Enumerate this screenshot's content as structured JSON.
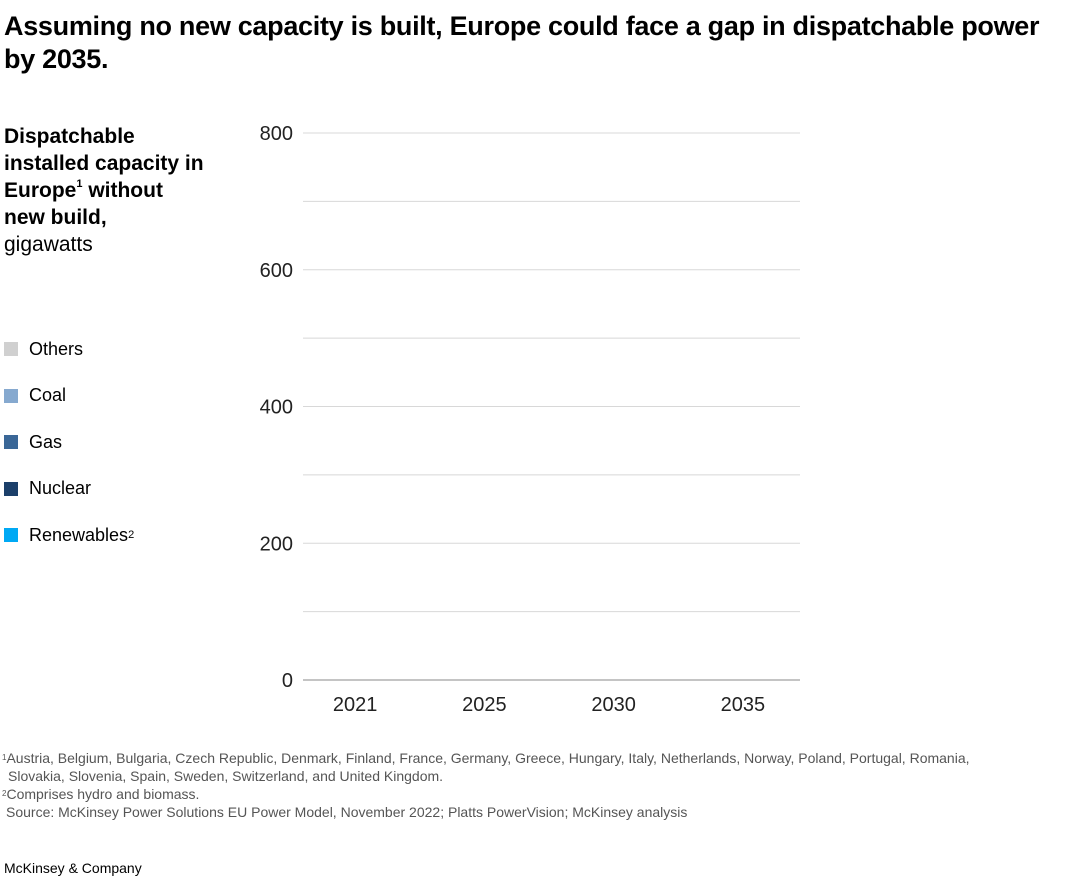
{
  "title": "Assuming no new capacity is built, Europe could face a gap in dispatchable power by 2035.",
  "ylabel": {
    "line1": "Dispatchable installed capacity in Europe",
    "sup": "1",
    "line2": "without new build,",
    "unit": "gigawatts"
  },
  "chart_data": {
    "type": "bar",
    "stacked": true,
    "title": "",
    "xlabel": "",
    "ylabel": "Dispatchable installed capacity in Europe without new build, gigawatts",
    "categories": [
      "2021",
      "2025",
      "2030",
      "2035"
    ],
    "ylim": [
      0,
      800
    ],
    "yticks": [
      0,
      200,
      400,
      600,
      800
    ],
    "grid": true,
    "gridlines_every": 100,
    "legend_placement": "left",
    "series": [
      {
        "name": "Others",
        "color": "#d0d0d0"
      },
      {
        "name": "Coal",
        "color": "#86a9cf"
      },
      {
        "name": "Gas",
        "color": "#3a6797"
      },
      {
        "name": "Nuclear",
        "color": "#1b3f6a"
      },
      {
        "name": "Renewables",
        "sup": "2",
        "color": "#00a9f4"
      }
    ]
  },
  "footnotes": {
    "n1_sup": "1",
    "n1": "Austria, Belgium, Bulgaria, Czech Republic, Denmark, Finland, France, Germany, Greece, Hungary, Italy, Netherlands, Norway, Poland, Portugal, Romania,",
    "n1b": "Slovakia, Slovenia, Spain, Sweden, Switzerland, and United Kingdom.",
    "n2_sup": "2",
    "n2": "Comprises hydro and biomass.",
    "source": "Source: McKinsey Power Solutions EU Power Model, November 2022; Platts PowerVision; McKinsey analysis"
  },
  "brand": "McKinsey & Company"
}
